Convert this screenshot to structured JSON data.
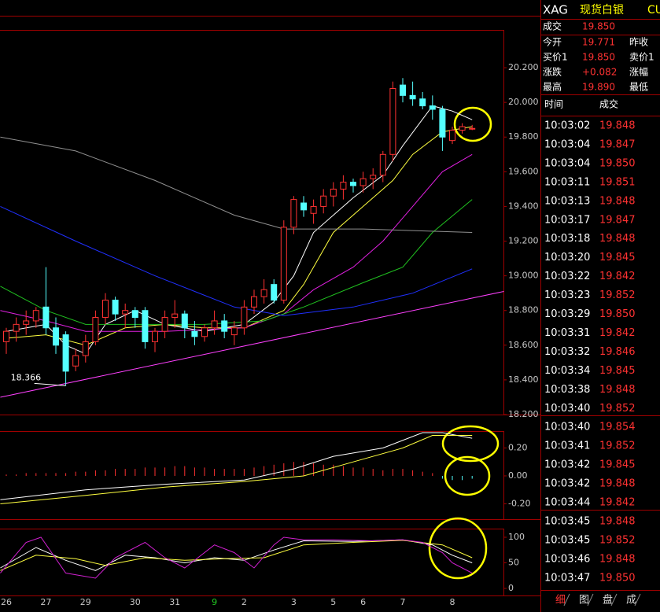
{
  "quote": {
    "symbol": "XAG",
    "name": "现货白银",
    "code_partial": "CU",
    "last_label": "成交",
    "last": "19.850",
    "rows": [
      [
        "今开",
        "19.771",
        "昨收"
      ],
      [
        "买价1",
        "19.850",
        "卖价1"
      ],
      [
        "涨跌",
        "+0.082",
        "涨幅"
      ],
      [
        "最高",
        "19.890",
        "最低"
      ]
    ]
  },
  "trades": {
    "headers": [
      "时间",
      "成交"
    ],
    "rows": [
      [
        "10:03:02",
        "19.848"
      ],
      [
        "10:03:04",
        "19.847"
      ],
      [
        "10:03:04",
        "19.850"
      ],
      [
        "10:03:11",
        "19.851"
      ],
      [
        "10:03:13",
        "19.848"
      ],
      [
        "10:03:17",
        "19.847"
      ],
      [
        "10:03:18",
        "19.848"
      ],
      [
        "10:03:20",
        "19.845"
      ],
      [
        "10:03:22",
        "19.842"
      ],
      [
        "10:03:23",
        "19.852"
      ],
      [
        "10:03:29",
        "19.850"
      ],
      [
        "10:03:31",
        "19.842"
      ],
      [
        "10:03:32",
        "19.846"
      ],
      [
        "10:03:34",
        "19.845"
      ],
      [
        "10:03:38",
        "19.848"
      ],
      [
        "10:03:40",
        "19.852"
      ],
      [
        "10:03:40",
        "19.854"
      ],
      [
        "10:03:41",
        "19.852"
      ],
      [
        "10:03:42",
        "19.845"
      ],
      [
        "10:03:42",
        "19.848"
      ],
      [
        "10:03:44",
        "19.842"
      ],
      [
        "10:03:45",
        "19.848"
      ],
      [
        "10:03:45",
        "19.852"
      ],
      [
        "10:03:46",
        "19.848"
      ],
      [
        "10:03:47",
        "19.850"
      ]
    ]
  },
  "tabs": [
    "细",
    "图",
    "盘",
    "成"
  ],
  "chart_data": [
    {
      "type": "candlestick",
      "up_color": "#ff3232",
      "down_color": "#54ffff",
      "highlight_color": "#22cc22",
      "highlight_index": 21,
      "categories": [
        "26",
        null,
        null,
        null,
        "27",
        null,
        null,
        null,
        "29",
        null,
        null,
        null,
        null,
        "30",
        null,
        null,
        null,
        "31",
        null,
        null,
        null,
        "9",
        null,
        null,
        "2",
        null,
        null,
        null,
        null,
        "3",
        null,
        null,
        null,
        "5",
        null,
        null,
        "6",
        null,
        null,
        null,
        "7",
        null,
        null,
        null,
        null,
        "8",
        null,
        null
      ],
      "open": [
        18.62,
        18.68,
        18.72,
        18.74,
        18.82,
        18.7,
        18.66,
        18.48,
        18.54,
        18.62,
        18.76,
        18.86,
        18.78,
        18.8,
        18.8,
        18.62,
        18.68,
        18.76,
        18.78,
        18.68,
        18.65,
        18.7,
        18.74,
        18.66,
        18.7,
        18.82,
        18.88,
        18.95,
        18.86,
        19.28,
        19.42,
        19.36,
        19.4,
        19.46,
        19.5,
        19.54,
        19.52,
        19.56,
        19.58,
        19.7,
        20.1,
        20.04,
        20.02,
        19.98,
        19.96,
        19.78,
        19.84,
        19.85
      ],
      "high": [
        18.7,
        18.76,
        18.8,
        18.82,
        19.05,
        18.76,
        18.68,
        18.58,
        18.66,
        18.8,
        18.9,
        18.88,
        18.84,
        18.82,
        18.82,
        18.7,
        18.8,
        18.86,
        18.8,
        18.74,
        18.72,
        18.8,
        18.78,
        18.74,
        18.86,
        18.92,
        18.98,
        18.98,
        19.32,
        19.46,
        19.46,
        19.44,
        19.5,
        19.54,
        19.58,
        19.56,
        19.6,
        19.62,
        19.72,
        20.12,
        20.14,
        20.12,
        20.06,
        20.04,
        19.98,
        19.86,
        19.88,
        19.87
      ],
      "low": [
        18.55,
        18.62,
        18.66,
        18.7,
        18.66,
        18.55,
        18.366,
        18.45,
        18.5,
        18.6,
        18.72,
        18.74,
        18.7,
        18.7,
        18.58,
        18.56,
        18.64,
        18.7,
        18.64,
        18.6,
        18.62,
        18.66,
        18.64,
        18.6,
        18.66,
        18.78,
        18.84,
        18.84,
        18.84,
        19.24,
        19.34,
        19.3,
        19.36,
        19.4,
        19.44,
        19.48,
        19.48,
        19.5,
        19.54,
        19.66,
        20.0,
        19.98,
        19.96,
        19.9,
        19.72,
        19.76,
        19.82,
        19.84
      ],
      "close": [
        18.68,
        18.72,
        18.74,
        18.8,
        18.7,
        18.6,
        18.45,
        18.54,
        18.62,
        18.76,
        18.86,
        18.78,
        18.8,
        18.76,
        18.62,
        18.68,
        18.76,
        18.78,
        18.7,
        18.65,
        18.7,
        18.74,
        18.68,
        18.7,
        18.82,
        18.88,
        18.92,
        18.86,
        19.28,
        19.44,
        19.38,
        19.4,
        19.46,
        19.5,
        19.54,
        19.52,
        19.56,
        19.58,
        19.7,
        20.08,
        20.04,
        20.02,
        19.98,
        19.96,
        19.8,
        19.84,
        19.86,
        19.85
      ],
      "annotation": "18.366",
      "annotation_index": 6,
      "lines": [
        {
          "color": "#ffffff",
          "x": [
            0,
            4,
            6,
            8,
            10,
            13,
            16,
            20,
            24,
            27,
            29,
            31,
            35,
            38,
            40,
            43,
            45,
            47
          ],
          "values": [
            18.68,
            18.72,
            18.6,
            18.55,
            18.72,
            18.8,
            18.72,
            18.68,
            18.72,
            18.85,
            19.0,
            19.25,
            19.45,
            19.58,
            19.75,
            19.98,
            19.95,
            19.9
          ]
        },
        {
          "color": "#ffff40",
          "x": [
            0,
            4,
            8,
            12,
            16,
            20,
            24,
            28,
            30,
            33,
            36,
            39,
            41,
            44,
            47
          ],
          "values": [
            18.64,
            18.66,
            18.6,
            18.7,
            18.72,
            18.7,
            18.7,
            18.8,
            18.95,
            19.25,
            19.4,
            19.55,
            19.7,
            19.83,
            19.86
          ]
        },
        {
          "color": "#e020e0",
          "x": [
            -0.6,
            4,
            8,
            16,
            24,
            28,
            31,
            35,
            38,
            41,
            44,
            47
          ],
          "values": [
            18.8,
            18.74,
            18.68,
            18.68,
            18.7,
            18.78,
            18.92,
            19.05,
            19.2,
            19.4,
            19.6,
            19.7
          ]
        },
        {
          "color": "#20c020",
          "x": [
            -0.6,
            4,
            8,
            20,
            26,
            30,
            36,
            40,
            43,
            47
          ],
          "values": [
            18.94,
            18.8,
            18.72,
            18.72,
            18.74,
            18.82,
            18.96,
            19.05,
            19.25,
            19.44
          ]
        },
        {
          "color": "#2030ff",
          "x": [
            -0.6,
            7,
            15,
            23,
            28,
            35,
            41,
            47
          ],
          "values": [
            19.4,
            19.2,
            19.0,
            18.82,
            18.77,
            18.82,
            18.9,
            19.04
          ]
        },
        {
          "color": "#909090",
          "x": [
            -0.6,
            7,
            15,
            23,
            28,
            36,
            47
          ],
          "values": [
            19.8,
            19.72,
            19.55,
            19.35,
            19.27,
            19.27,
            19.25
          ]
        },
        {
          "color": "#ff40ff",
          "x": [
            -0.6,
            50.2
          ],
          "values": [
            18.3,
            18.91
          ]
        }
      ],
      "ylim": [
        18.2,
        20.418
      ],
      "yticks": [
        {
          "value": 18.2,
          "label": "18.200"
        },
        {
          "value": 18.4,
          "label": "18.400"
        },
        {
          "value": 18.6,
          "label": "18.600"
        },
        {
          "value": 18.8,
          "label": "18.800"
        },
        {
          "value": 19.0,
          "label": "19.000"
        },
        {
          "value": 19.2,
          "label": "19.200"
        },
        {
          "value": 19.4,
          "label": "19.400"
        },
        {
          "value": 19.6,
          "label": "19.600"
        },
        {
          "value": 19.8,
          "label": "19.800"
        },
        {
          "value": 20.0,
          "label": "20.000"
        },
        {
          "value": 20.2,
          "label": "20.200"
        }
      ]
    },
    {
      "type": "macd",
      "up_color": "#ff3232",
      "down_color": "#54ffff",
      "histogram": [
        0.01,
        0.01,
        0.02,
        0.02,
        0.02,
        0.02,
        0.02,
        0.03,
        0.03,
        0.04,
        0.04,
        0.05,
        0.05,
        0.05,
        0.06,
        0.06,
        0.06,
        0.07,
        0.07,
        0.06,
        0.06,
        0.05,
        0.05,
        0.05,
        0.05,
        0.06,
        0.07,
        0.08,
        0.09,
        0.1,
        0.1,
        0.09,
        0.08,
        0.08,
        0.07,
        0.06,
        0.06,
        0.05,
        0.04,
        0.05,
        0.05,
        0.04,
        0.03,
        0.02,
        -0.02,
        -0.03,
        -0.03,
        -0.02
      ],
      "lines": [
        {
          "color": "#ffffff",
          "x": [
            -0.6,
            8,
            16,
            24,
            29,
            33,
            38,
            42,
            44,
            47
          ],
          "values": [
            -0.17,
            -0.1,
            -0.06,
            -0.03,
            0.05,
            0.14,
            0.2,
            0.31,
            0.31,
            0.27
          ]
        },
        {
          "color": "#ffff40",
          "x": [
            -0.6,
            8,
            16,
            24,
            30,
            35,
            40,
            43,
            47
          ],
          "values": [
            -0.2,
            -0.14,
            -0.08,
            -0.04,
            0.0,
            0.1,
            0.2,
            0.29,
            0.29
          ]
        }
      ],
      "ylim": [
        -0.31,
        0.321
      ],
      "yticks": [
        {
          "value": -0.2,
          "label": "-0.20"
        },
        {
          "value": 0,
          "label": "0.00"
        },
        {
          "value": 0.2,
          "label": "0.20"
        }
      ]
    },
    {
      "type": "kdj",
      "lines": [
        {
          "color": "#ffffff",
          "x": [
            -0.6,
            3,
            6,
            9,
            12,
            15,
            18,
            21,
            24,
            27,
            30,
            35,
            40,
            43,
            45,
            47
          ],
          "values": [
            40,
            80,
            55,
            35,
            65,
            60,
            50,
            60,
            55,
            75,
            93,
            92,
            95,
            85,
            65,
            50
          ]
        },
        {
          "color": "#ffff40",
          "x": [
            -0.6,
            3,
            7,
            10,
            14,
            18,
            22,
            26,
            30,
            35,
            40,
            44,
            47
          ],
          "values": [
            35,
            65,
            58,
            45,
            60,
            55,
            58,
            60,
            85,
            90,
            94,
            85,
            60
          ]
        },
        {
          "color": "#d020d0",
          "x": [
            -0.6,
            2,
            3.5,
            6,
            9,
            11,
            14,
            16,
            18,
            21,
            23,
            25,
            27,
            28,
            30,
            33,
            37,
            40,
            42,
            44,
            45,
            47
          ],
          "values": [
            30,
            90,
            100,
            30,
            20,
            60,
            90,
            60,
            40,
            85,
            70,
            40,
            85,
            100,
            95,
            95,
            93,
            95,
            90,
            70,
            50,
            30
          ]
        }
      ],
      "ylim": [
        -13.8,
        116.9
      ],
      "yticks": [
        0,
        50,
        100
      ]
    }
  ]
}
